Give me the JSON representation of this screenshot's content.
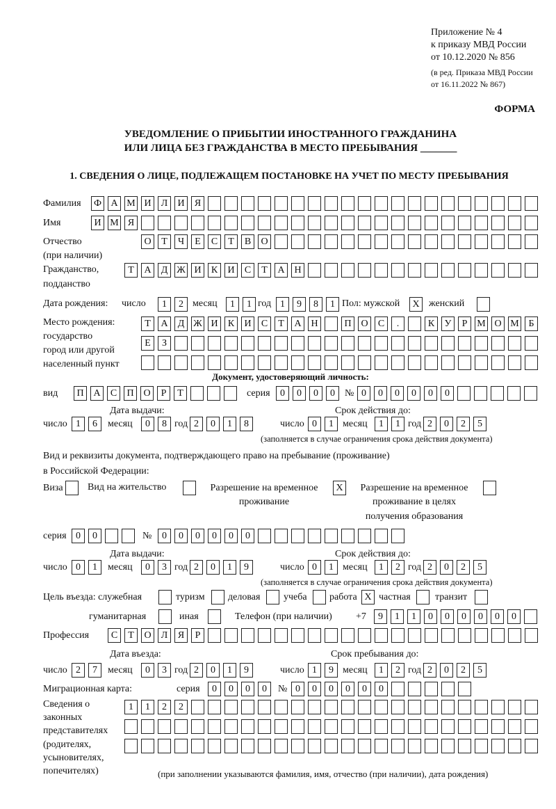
{
  "header": {
    "appendix": [
      "Приложение № 4",
      "к приказу МВД России",
      "от 10.12.2020 № 856"
    ],
    "edition": [
      "(в ред. Приказа МВД России",
      "от 16.11.2022 № 867)"
    ],
    "form_label": "ФОРМА",
    "title_line1": "УВЕДОМЛЕНИЕ О ПРИБЫТИИ ИНОСТРАННОГО ГРАЖДАНИНА",
    "title_line2": "ИЛИ ЛИЦА БЕЗ ГРАЖДАНСТВА В МЕСТО ПРЕБЫВАНИЯ _______",
    "section1": "1. СВЕДЕНИЯ О ЛИЦЕ, ПОДЛЕЖАЩЕМ ПОСТАНОВКЕ НА УЧЕТ ПО МЕСТУ ПРЕБЫВАНИЯ"
  },
  "labels": {
    "surname": "Фамилия",
    "name": "Имя",
    "patronymic": "Отчество",
    "patronymic_note": "(при наличии)",
    "citizenship": "Гражданство,",
    "citizenship2": "подданство",
    "birth_date": "Дата рождения:",
    "day": "число",
    "month": "месяц",
    "year": "год",
    "sex": "Пол: мужской",
    "female": "женский",
    "birthplace": [
      "Место рождения:",
      "государство",
      "город или другой",
      "населенный пункт"
    ],
    "id_doc": "Документ, удостоверяющий личность:",
    "kind": "вид",
    "series": "серия",
    "number": "№",
    "issue_date": "Дата выдачи:",
    "valid_until": "Срок действия до:",
    "valid_note": "(заполняется в случае ограничения срока действия документа)",
    "stay_doc1": "Вид и реквизиты документа, подтверждающего право на пребывание (проживание)",
    "stay_doc2": "в Российской Федерации:",
    "visa": "Виза",
    "residence": "Вид на жительство",
    "temp_res": [
      "Разрешение на временное",
      "проживание"
    ],
    "temp_res_edu": [
      "Разрешение на временное",
      "проживание в целях",
      "получения образования"
    ],
    "purpose": "Цель въезда: служебная",
    "tourism": "туризм",
    "business": "деловая",
    "study": "учеба",
    "work": "работа",
    "private": "частная",
    "transit": "транзит",
    "humanitarian": "гуманитарная",
    "other": "иная",
    "phone": "Телефон (при наличии)",
    "phone_prefix": "+7",
    "profession": "Профессия",
    "entry_date": "Дата въезда:",
    "stay_until": "Срок пребывания до:",
    "migration_card": "Миграционная карта:",
    "representatives": [
      "Сведения о",
      "законных",
      "представителях",
      "(родителях,",
      "усыновителях,",
      "попечителях)"
    ],
    "rep_note": "(при заполнении указываются фамилия, имя, отчество (при наличии), дата рождения)"
  },
  "values": {
    "surname": "ФАМИЛИЯ",
    "name": "ИМЯ",
    "patronymic": "ОТЧЕСТВО",
    "citizenship": "ТАДЖИКИСТАН",
    "birth_day": "12",
    "birth_month": "11",
    "birth_year": "1981",
    "sex_male": "X",
    "sex_female": "",
    "birthplace1": "ТАДЖИКИСТАН ПОС. КУРМОМБ",
    "birthplace2": "ЕЗ",
    "birthplace3": "",
    "doc_kind": "ПАСПОРТ",
    "doc_series": "0000",
    "doc_number": "000000",
    "doc_issue_day": "16",
    "doc_issue_month": "08",
    "doc_issue_year": "2018",
    "doc_valid_day": "01",
    "doc_valid_month": "11",
    "doc_valid_year": "2025",
    "visa": "",
    "residence": "",
    "temp_res": "X",
    "temp_res_edu": "",
    "stay_series": "00",
    "stay_number": "000000",
    "stay_issue_day": "01",
    "stay_issue_month": "03",
    "stay_issue_year": "2019",
    "stay_valid_day": "01",
    "stay_valid_month": "12",
    "stay_valid_year": "2025",
    "p_service": "",
    "p_tourism": "",
    "p_business": "",
    "p_study": "",
    "p_work": "X",
    "p_private": "",
    "p_transit": "",
    "p_humanitarian": "",
    "p_other": "",
    "phone": "911000000",
    "profession": "СТОЛЯР",
    "entry_day": "27",
    "entry_month": "03",
    "entry_year": "2019",
    "stay_day": "19",
    "stay_month": "12",
    "stay_year": "2025",
    "mc_series": "0000",
    "mc_number": "000000",
    "rep1": "1122",
    "rep2": "",
    "rep3": ""
  }
}
